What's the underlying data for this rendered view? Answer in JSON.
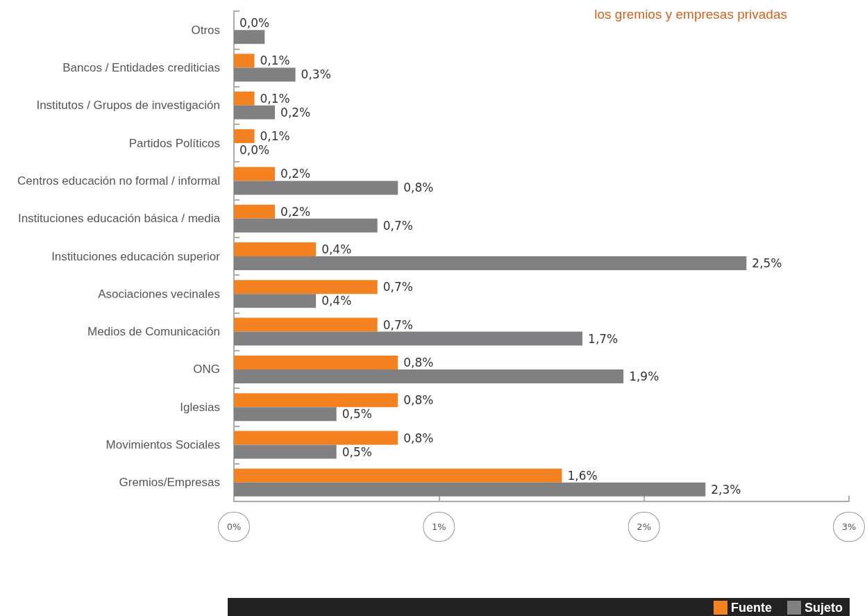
{
  "chart_data": {
    "type": "bar",
    "orientation": "horizontal",
    "title": "los gremios y empresas privadas",
    "categories": [
      "Otros",
      "Bancos / Entidades crediticias",
      "Institutos / Grupos de investigación",
      "Partidos Políticos",
      "Centros educación no formal / informal",
      "Instituciones educación básica / media",
      "Instituciones educación superior",
      "Asociaciones vecinales",
      "Medios de Comunicación",
      "ONG",
      "Iglesias",
      "Movimientos Sociales",
      "Gremios/Empresas"
    ],
    "series": [
      {
        "name": "Fuente",
        "color": "#f58220",
        "values": [
          0.0,
          0.1,
          0.1,
          0.1,
          0.2,
          0.2,
          0.4,
          0.7,
          0.7,
          0.8,
          0.8,
          0.8,
          1.6
        ],
        "value_labels": [
          "0,0%",
          "0,1%",
          "0,1%",
          "0,1%",
          "0,2%",
          "0,2%",
          "0,4%",
          "0,7%",
          "0,7%",
          "0,8%",
          "0,8%",
          "0,8%",
          "1,6%"
        ]
      },
      {
        "name": "Sujeto",
        "color": "#808083",
        "values": [
          0.15,
          0.3,
          0.2,
          0.0,
          0.8,
          0.7,
          2.5,
          0.4,
          1.7,
          1.9,
          0.5,
          0.5,
          2.3
        ],
        "value_labels": [
          null,
          "0,3%",
          "0,2%",
          "0,0%",
          "0,8%",
          "0,7%",
          "2,5%",
          "0,4%",
          "1,7%",
          "1,9%",
          "0,5%",
          "0,5%",
          "2,3%"
        ]
      }
    ],
    "xlim": [
      0,
      3
    ],
    "xticks": [
      {
        "value": 0,
        "label": "0%"
      },
      {
        "value": 1,
        "label": "1%"
      },
      {
        "value": 2,
        "label": "2%"
      },
      {
        "value": 3,
        "label": "3%"
      }
    ],
    "grid": false,
    "legend": "bottom right"
  }
}
